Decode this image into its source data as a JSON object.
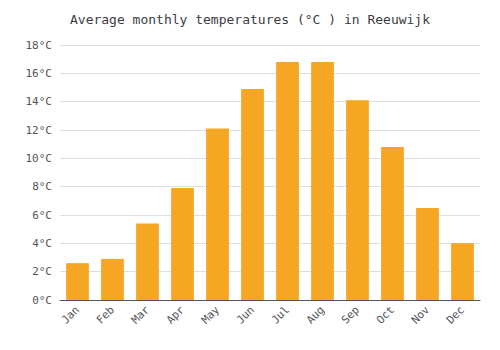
{
  "chart_data": {
    "type": "bar",
    "title": "Average monthly temperatures (°C ) in Reeuwijk",
    "categories": [
      "Jan",
      "Feb",
      "Mar",
      "Apr",
      "May",
      "Jun",
      "Jul",
      "Aug",
      "Sep",
      "Oct",
      "Nov",
      "Dec"
    ],
    "values": [
      2.6,
      2.9,
      5.4,
      7.9,
      12.1,
      14.9,
      16.8,
      16.8,
      14.1,
      10.8,
      6.5,
      4.0
    ],
    "color": "#F5A623",
    "ylim": [
      0,
      18
    ],
    "yticks": [
      {
        "value": 0,
        "label": "0°C"
      },
      {
        "value": 2,
        "label": "2°C"
      },
      {
        "value": 4,
        "label": "4°C"
      },
      {
        "value": 6,
        "label": "6°C"
      },
      {
        "value": 8,
        "label": "8°C"
      },
      {
        "value": 10,
        "label": "10°C"
      },
      {
        "value": 12,
        "label": "12°C"
      },
      {
        "value": 14,
        "label": "14°C"
      },
      {
        "value": 16,
        "label": "16°C"
      },
      {
        "value": 18,
        "label": "18°C"
      }
    ],
    "grid": true
  }
}
